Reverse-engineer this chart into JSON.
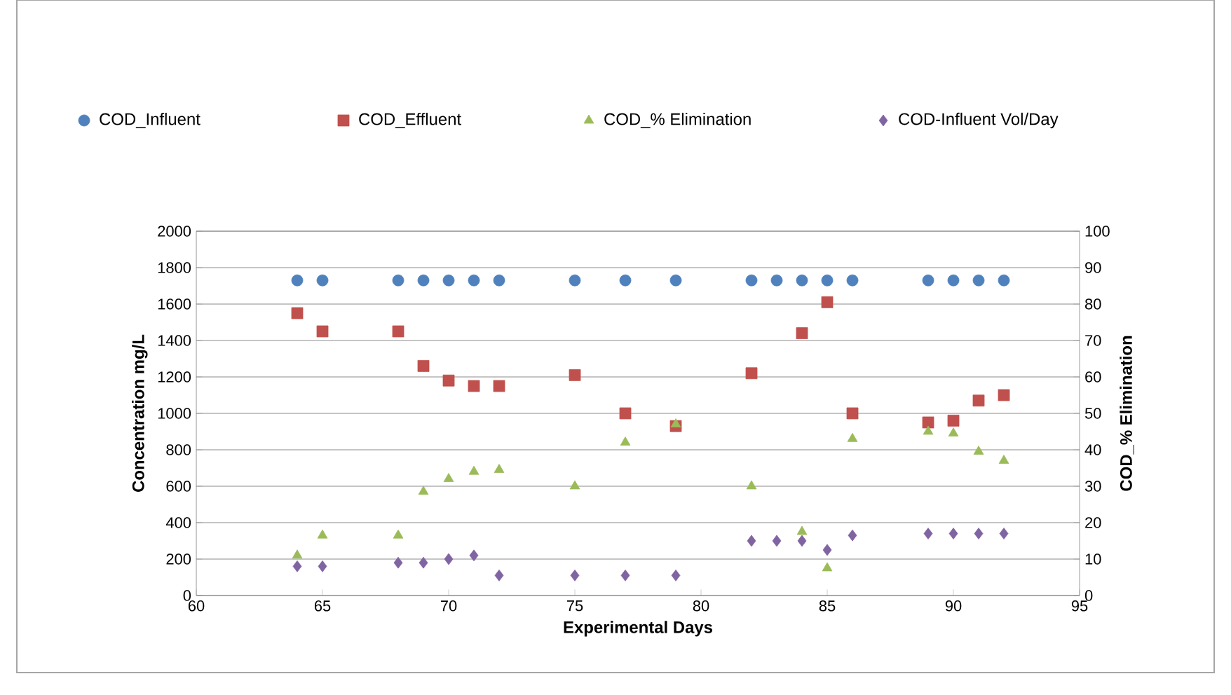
{
  "chart_data": {
    "type": "scatter",
    "xlabel": "Experimental Days",
    "ylabel": "Concentration mg/L",
    "y2label": "COD_% Elimination",
    "x": [
      64,
      65,
      68,
      69,
      70,
      71,
      72,
      75,
      77,
      79,
      82,
      83,
      84,
      85,
      86,
      89,
      90,
      91,
      92
    ],
    "series": [
      {
        "name": "COD_Influent",
        "color": "#4f81bd",
        "marker": "circle",
        "values": [
          1730,
          1730,
          1730,
          1730,
          1730,
          1730,
          1730,
          1730,
          1730,
          1730,
          1730,
          1730,
          1730,
          1730,
          1730,
          1730,
          1730,
          1730,
          1730
        ]
      },
      {
        "name": "COD_Effluent",
        "color": "#c0504d",
        "marker": "square",
        "x": [
          64,
          65,
          68,
          69,
          70,
          71,
          72,
          75,
          77,
          79,
          82,
          84,
          85,
          86,
          89,
          90,
          91,
          92
        ],
        "values": [
          1550,
          1450,
          1450,
          1260,
          1180,
          1150,
          1150,
          1210,
          1000,
          930,
          1220,
          1440,
          1610,
          1000,
          950,
          960,
          1070,
          1100
        ]
      },
      {
        "name": "COD_% Elimination",
        "color": "#9bbb59",
        "marker": "triangle",
        "axis": "y2",
        "x": [
          64,
          65,
          68,
          69,
          70,
          71,
          72,
          75,
          77,
          79,
          82,
          84,
          85,
          86,
          89,
          90,
          91,
          92
        ],
        "values": [
          11,
          16.5,
          16.5,
          28.5,
          32,
          34,
          34.5,
          30,
          42,
          47,
          30,
          17.5,
          7.5,
          43,
          45,
          44.5,
          39.5,
          37
        ]
      },
      {
        "name": "COD-Influent Vol/Day",
        "color": "#8064a2",
        "marker": "diamond",
        "values": [
          160,
          160,
          180,
          180,
          200,
          220,
          110,
          110,
          110,
          110,
          300,
          300,
          300,
          250,
          330,
          340,
          340,
          340,
          340
        ]
      }
    ],
    "xlim": [
      60,
      95
    ],
    "xticks": [
      60,
      65,
      70,
      75,
      80,
      85,
      90,
      95
    ],
    "ylim": [
      0,
      2000
    ],
    "yticks": [
      0,
      200,
      400,
      600,
      800,
      1000,
      1200,
      1400,
      1600,
      1800,
      2000
    ],
    "y2lim": [
      0,
      100
    ],
    "y2ticks": [
      0,
      10,
      20,
      30,
      40,
      50,
      60,
      70,
      80,
      90,
      100
    ],
    "grid": "y",
    "legend": "top"
  }
}
